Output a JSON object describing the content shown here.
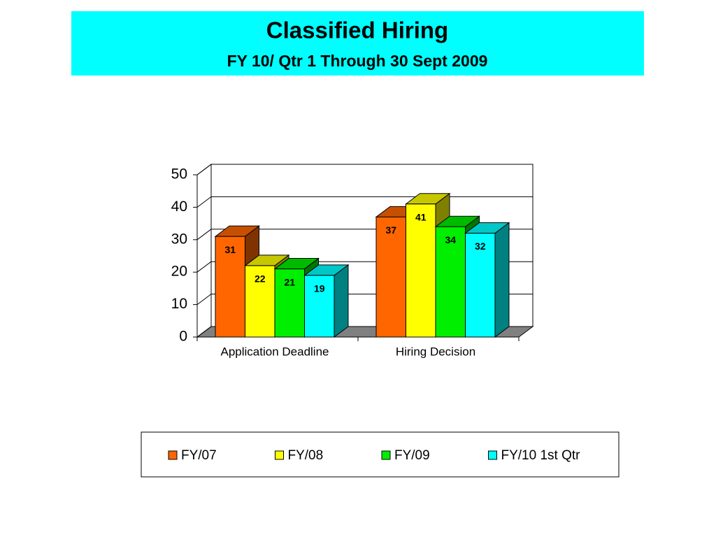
{
  "chart_data": {
    "type": "bar3d",
    "title": "Classified Hiring",
    "subtitle": "FY 10/ Qtr 1 Through 30 Sept 2009",
    "categories": [
      "Application Deadline",
      "Hiring Decision"
    ],
    "series": [
      {
        "name": "FY/07",
        "color": "#ff6600",
        "values": [
          31,
          37
        ]
      },
      {
        "name": "FY/08",
        "color": "#ffff00",
        "values": [
          22,
          41
        ]
      },
      {
        "name": "FY/09",
        "color": "#00ee00",
        "values": [
          21,
          34
        ]
      },
      {
        "name": "FY/10 1st Qtr",
        "color": "#00ffff",
        "values": [
          19,
          32
        ]
      }
    ],
    "ylim": [
      0,
      50
    ],
    "yticks": [
      0,
      10,
      20,
      30,
      40,
      50
    ],
    "grid": true,
    "legend": "bottom"
  }
}
